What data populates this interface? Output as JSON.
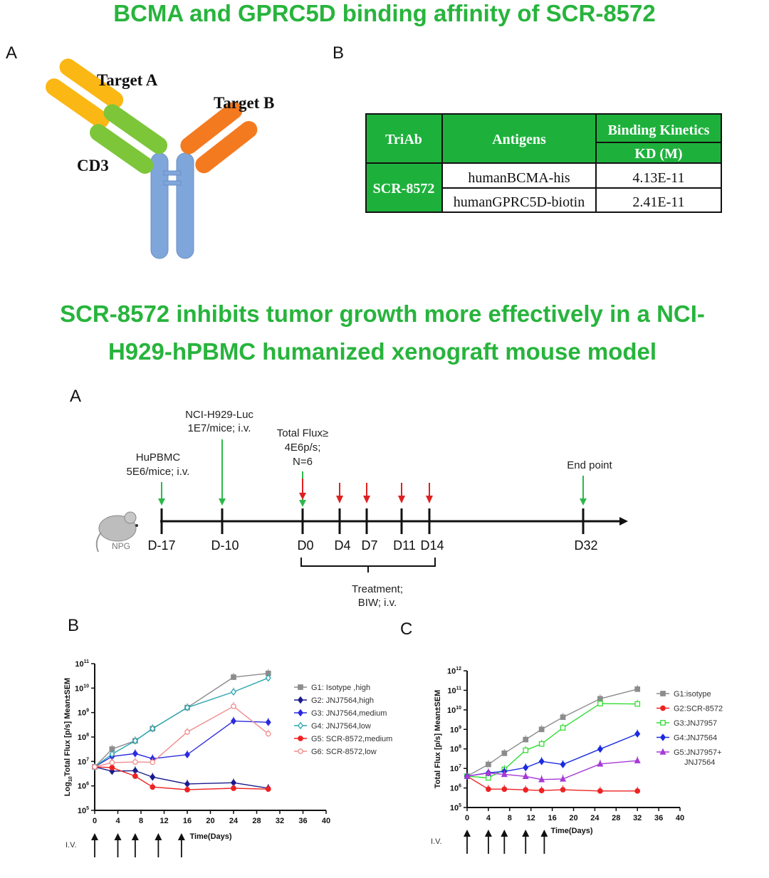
{
  "titles": {
    "top": "BCMA and GPRC5D binding affinity of SCR-8572",
    "middle_line1": "SCR-8572 inhibits tumor growth more effectively in a NCI-",
    "middle_line2": "H929-hPBMC humanized xenograft mouse model"
  },
  "panels": {
    "a1": "A",
    "b1": "B",
    "a2": "A",
    "b2": "B",
    "c2": "C"
  },
  "antibody": {
    "target_a": "Target A",
    "target_b": "Target B",
    "cd3": "CD3",
    "colors": {
      "target_a": "#fbb714",
      "cd3": "#7dc63a",
      "target_b": "#f47a20",
      "fc": "#7fa6db"
    }
  },
  "table": {
    "headers": {
      "triab": "TriAb",
      "antigens": "Antigens",
      "kinetics": "Binding Kinetics",
      "kd": "KD (M)"
    },
    "molecule": "SCR-8572",
    "rows": [
      {
        "antigen": "humanBCMA-his",
        "kd": "4.13E-11"
      },
      {
        "antigen": "humanGPRC5D-biotin",
        "kd": "2.41E-11"
      }
    ],
    "header_color": "#1db13c"
  },
  "timeline": {
    "mouse_label": "NPG",
    "days": [
      "D-17",
      "D-10",
      "D0",
      "D4",
      "D7",
      "D11",
      "D14",
      "D32"
    ],
    "events": {
      "pbmc": [
        "HuPBMC",
        "5E6/mice; i.v."
      ],
      "tumor": [
        "NCI-H929-Luc",
        "1E7/mice; i.v."
      ],
      "grouping": [
        "Total Flux≥",
        "4E6p/s;",
        "N=6"
      ],
      "end": [
        "End point"
      ]
    },
    "treatment": [
      "Treatment;",
      "BIW; i.v."
    ]
  },
  "chart_data": [
    {
      "type": "line",
      "panel": "B",
      "xlabel": "Time(Days)",
      "ylabel": "Log10Total Flux [p/s] Mean±SEM",
      "ylabel_parts": [
        "Log",
        "10",
        "Total Flux [p/s] Mean±SEM"
      ],
      "xlim": [
        0,
        40
      ],
      "xticks": [
        0,
        4,
        8,
        12,
        16,
        20,
        24,
        28,
        32,
        36,
        40
      ],
      "ylim": [
        100000.0,
        100000000000.0
      ],
      "yscale": "log",
      "y_tick_exponents": [
        5,
        6,
        7,
        8,
        9,
        10,
        11
      ],
      "iv_label": "I.V.",
      "iv_days": [
        0,
        4,
        7,
        11,
        15
      ],
      "legend_position": "right",
      "x": [
        0,
        3,
        7,
        10,
        16,
        24,
        30
      ],
      "series": [
        {
          "name": "G1: Isotype ,high",
          "color": "#8c8c8c",
          "marker": "square",
          "values": [
            6000000.0,
            32000000.0,
            70000000.0,
            220000000.0,
            1600000000.0,
            28000000000.0,
            40000000000.0
          ]
        },
        {
          "name": "G2: JNJ7564,high",
          "color": "#1a1a8c",
          "marker": "diamond",
          "values": [
            6000000.0,
            4000000.0,
            4200000.0,
            2300000.0,
            1200000.0,
            1350000.0,
            800000.0
          ]
        },
        {
          "name": "G3: JNJ7564,medium",
          "color": "#2b2bdf",
          "marker": "diamond",
          "values": [
            6000000.0,
            16000000.0,
            21000000.0,
            13000000.0,
            19000000.0,
            450000000.0,
            400000000.0
          ]
        },
        {
          "name": "G4: JNJ7564,low",
          "color": "#2aa6b0",
          "marker": "open-diamond",
          "values": [
            6000000.0,
            20000000.0,
            70000000.0,
            220000000.0,
            1600000000.0,
            7000000000.0,
            26000000000.0
          ]
        },
        {
          "name": "G5: SCR-8572,medium",
          "color": "#ee2222",
          "marker": "circle",
          "values": [
            6000000.0,
            5600000.0,
            2500000.0,
            900000.0,
            700000.0,
            800000.0,
            740000.0
          ]
        },
        {
          "name": "G6: SCR-8572,low",
          "color": "#f08c8c",
          "marker": "open-circle",
          "values": [
            6000000.0,
            9000000.0,
            9500000.0,
            9300000.0,
            160000000.0,
            1800000000.0,
            135000000.0
          ]
        }
      ]
    },
    {
      "type": "line",
      "panel": "C",
      "xlabel": "Time(Days)",
      "ylabel": "Total Flux [p/s] Mean±SEM",
      "xlim": [
        0,
        40
      ],
      "xticks": [
        0,
        4,
        8,
        12,
        16,
        20,
        24,
        28,
        32,
        36,
        40
      ],
      "ylim": [
        100000.0,
        1000000000000.0
      ],
      "yscale": "log",
      "y_tick_exponents": [
        5,
        6,
        7,
        8,
        9,
        10,
        11,
        12
      ],
      "iv_label": "I.V.",
      "iv_days": [
        0,
        4,
        7,
        11,
        14.5
      ],
      "legend_position": "right",
      "x": [
        0,
        4,
        7,
        11,
        14,
        18,
        25,
        32
      ],
      "series": [
        {
          "name": "G1:isotype",
          "color": "#8c8c8c",
          "marker": "square",
          "values": [
            4000000.0,
            16000000.0,
            60000000.0,
            300000000.0,
            1000000000.0,
            4200000000.0,
            37000000000.0,
            115000000000.0
          ]
        },
        {
          "name": "G2:SCR-8572",
          "color": "#ee2222",
          "marker": "circle",
          "values": [
            4000000.0,
            870000.0,
            870000.0,
            800000.0,
            740000.0,
            810000.0,
            700000.0,
            700000.0
          ]
        },
        {
          "name": "G3:JNJ7957",
          "color": "#33dd33",
          "marker": "open-square",
          "values": [
            4000000.0,
            3300000.0,
            9000000.0,
            85000000.0,
            180000000.0,
            1200000000.0,
            21000000000.0,
            20000000000.0
          ]
        },
        {
          "name": "G4:JNJ7564",
          "color": "#1a2be0",
          "marker": "diamond",
          "values": [
            4000000.0,
            6000000.0,
            7000000.0,
            11000000.0,
            23000000.0,
            16000000.0,
            98000000.0,
            590000000.0
          ]
        },
        {
          "name": "G5:JNJ7957+ JNJ7564",
          "name_lines": [
            "G5:JNJ7957+",
            "JNJ7564"
          ],
          "color": "#a63ad6",
          "marker": "triangle",
          "values": [
            4000000.0,
            5800000.0,
            5000000.0,
            3900000.0,
            2700000.0,
            2900000.0,
            17000000.0,
            25000000.0
          ]
        }
      ]
    }
  ]
}
